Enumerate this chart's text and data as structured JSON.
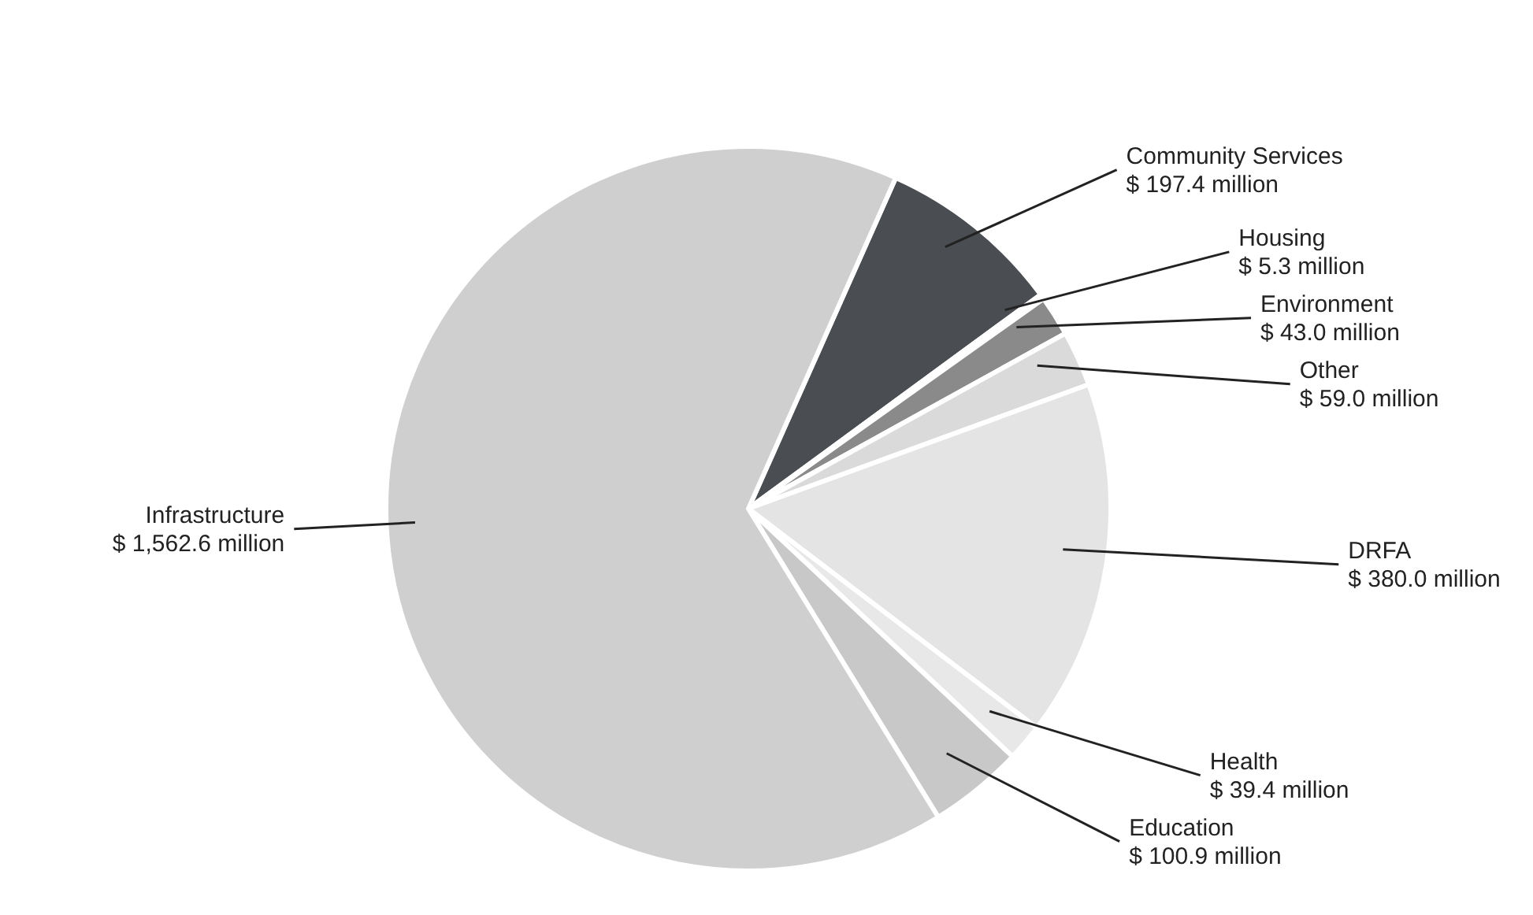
{
  "chart_data": {
    "type": "pie",
    "categories": [
      "Community Services",
      "Housing",
      "Environment",
      "Other",
      "DRFA",
      "Health",
      "Education",
      "Infrastructure"
    ],
    "values": [
      197.4,
      5.3,
      43.0,
      59.0,
      380.0,
      39.4,
      100.9,
      1562.6
    ],
    "value_labels": [
      "$ 197.4 million",
      "$ 5.3 million",
      "$ 43.0 million",
      "$ 59.0 million",
      "$ 380.0 million",
      "$ 39.4 million",
      "$ 100.9 million",
      "$ 1,562.6 million"
    ],
    "colors": [
      "#4a4d52",
      "#d4d4d4",
      "#8a8a8a",
      "#dadada",
      "#e4e4e4",
      "#e8e8e8",
      "#c8c8c8",
      "#cfcfcf"
    ]
  }
}
